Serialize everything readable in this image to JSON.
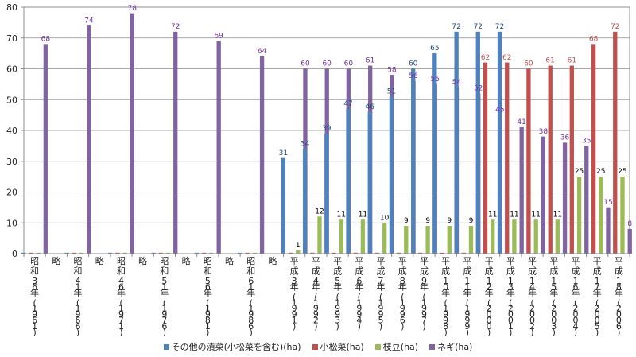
{
  "chart_data": {
    "type": "bar",
    "ylim": [
      0,
      80
    ],
    "yticks": [
      0,
      10,
      20,
      30,
      40,
      50,
      60,
      70,
      80
    ],
    "categories": [
      "昭和36年(1961)",
      "略",
      "昭和41年(1966)",
      "略",
      "昭和46年(1971)",
      "略",
      "昭和51年(1976)",
      "略",
      "昭和56年(1981)",
      "略",
      "昭和61年(1986)",
      "略",
      "平成3年(1991)",
      "平成4年(1992)",
      "平成5年(1993)",
      "平成6年(1994)",
      "平成7年(1995)",
      "平成8年(1996)",
      "平成9年(1997)",
      "平成10年(1998)",
      "平成11年(1999)",
      "平成12年(2000)",
      "平成13年(2001)",
      "平成14年(2002)",
      "平成15年(2003)",
      "平成16年(2004)",
      "平成17年(2005)",
      "平成18年(2006)"
    ],
    "series": [
      {
        "name": "その他の漬菜(小松菜を含む)(ha)",
        "color": "#4F81BD",
        "label_color": "#1F497D",
        "values": [
          0,
          null,
          0,
          null,
          0,
          null,
          0,
          null,
          0,
          null,
          0,
          null,
          31,
          34,
          39,
          47,
          46,
          51,
          60,
          65,
          72,
          72,
          72,
          0,
          0,
          0,
          0,
          0
        ],
        "labels": [
          null,
          null,
          null,
          null,
          null,
          null,
          null,
          null,
          null,
          null,
          null,
          null,
          "31",
          "34",
          "39",
          "47",
          "46",
          "51",
          "60",
          "65",
          "72",
          "72",
          "72",
          null,
          null,
          null,
          null,
          null
        ]
      },
      {
        "name": "小松菜(ha)",
        "color": "#C0504D",
        "label_color": "#C0504D",
        "values": [
          0,
          null,
          0,
          null,
          0,
          null,
          0,
          null,
          0,
          null,
          0,
          null,
          0,
          0,
          0,
          0,
          0,
          0,
          0,
          0,
          0,
          62,
          62,
          60,
          61,
          61,
          68,
          72
        ],
        "labels": [
          null,
          null,
          null,
          null,
          null,
          null,
          null,
          null,
          null,
          null,
          null,
          null,
          null,
          null,
          null,
          null,
          null,
          null,
          null,
          null,
          null,
          "62",
          "62",
          "60",
          "61",
          "61",
          "68",
          "72"
        ]
      },
      {
        "name": "枝豆(ha)",
        "color": "#9BBB59",
        "label_color": "#000000",
        "values": [
          0,
          null,
          0,
          null,
          0,
          null,
          0,
          null,
          0,
          null,
          0,
          null,
          1,
          12,
          11,
          11,
          10,
          9,
          9,
          9,
          9,
          11,
          11,
          11,
          11,
          25,
          25,
          25
        ],
        "labels": [
          null,
          null,
          null,
          null,
          null,
          null,
          null,
          null,
          null,
          null,
          null,
          null,
          "1",
          "12",
          "11",
          "11",
          "10",
          "9",
          "9",
          "9",
          "9",
          "11",
          "11",
          "11",
          "11",
          "25",
          "25",
          "25"
        ]
      },
      {
        "name": "ネギ(ha)",
        "color": "#8064A2",
        "label_color": "#7030A0",
        "values": [
          68,
          null,
          74,
          null,
          78,
          null,
          72,
          null,
          69,
          null,
          64,
          null,
          60,
          60,
          60,
          61,
          58,
          56,
          55,
          54,
          52,
          45,
          41,
          38,
          36,
          35,
          15,
          8
        ],
        "labels": [
          "68",
          null,
          "74",
          null,
          "78",
          null,
          "72",
          null,
          "69",
          null,
          "64",
          null,
          "60",
          "60",
          "60",
          "61",
          "58",
          "56",
          "55",
          "54",
          "52",
          "45",
          "41",
          "38",
          "36",
          "35",
          "15",
          "8"
        ]
      }
    ]
  }
}
